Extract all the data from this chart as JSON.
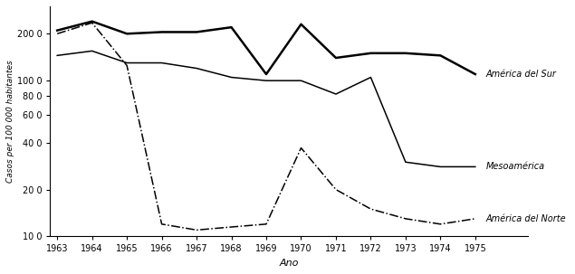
{
  "years": [
    1963,
    1964,
    1965,
    1966,
    1967,
    1968,
    1969,
    1970,
    1971,
    1972,
    1973,
    1974,
    1975
  ],
  "america_sur": [
    210,
    240,
    200,
    205,
    205,
    220,
    110,
    230,
    140,
    150,
    150,
    145,
    110
  ],
  "mesoamerica": [
    145,
    155,
    130,
    130,
    120,
    105,
    100,
    100,
    82,
    105,
    30,
    28,
    28
  ],
  "america_norte": [
    200,
    235,
    125,
    12,
    11,
    11.5,
    12,
    37,
    20,
    15,
    13,
    12,
    13
  ],
  "ylabel": "Casos per 100 000 habitantes",
  "xlabel": "Ano",
  "label_sur": "América del Sur",
  "label_meso": "Mesoamérica",
  "label_norte": "América del Norte",
  "ylim_min": 10,
  "ylim_max": 300,
  "yticks": [
    10,
    20,
    40,
    60,
    80,
    100,
    200
  ],
  "ytick_labels": [
    "10 0",
    "20 0",
    "40 0",
    "60 0",
    "80 0",
    "100 0",
    "200 0"
  ],
  "line_color": "#000000",
  "bg_color": "#ffffff"
}
